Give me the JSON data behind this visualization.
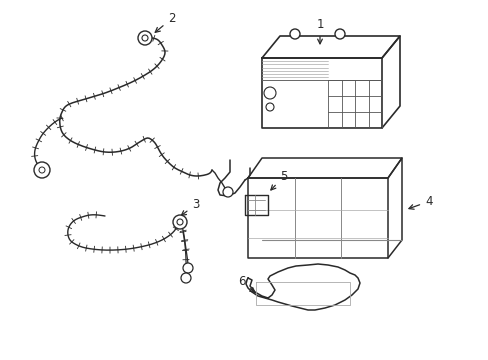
{
  "background_color": "#ffffff",
  "line_color": "#2a2a2a",
  "line_width": 1.0,
  "label_fontsize": 8.5,
  "figsize": [
    4.89,
    3.6
  ],
  "dpi": 100,
  "xlim": [
    0,
    489
  ],
  "ylim": [
    0,
    360
  ]
}
